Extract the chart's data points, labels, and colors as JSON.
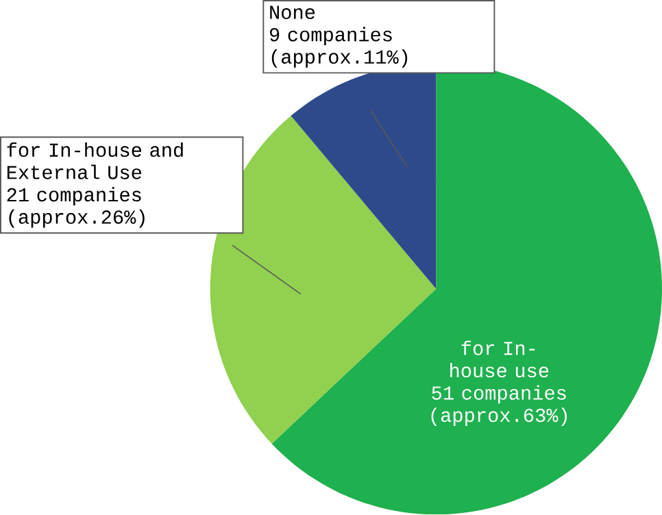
{
  "chart_data": {
    "type": "pie",
    "categories": [
      "for In-house use",
      "for In-house and External Use",
      "None"
    ],
    "values": [
      51,
      21,
      9
    ],
    "colors": [
      "#1fb04f",
      "#92d050",
      "#2e4a8a"
    ],
    "value_labels": [
      "51 companies (approx.63%)",
      "21 companies (approx.26%)",
      "9 companies (approx.11%)"
    ]
  }
}
